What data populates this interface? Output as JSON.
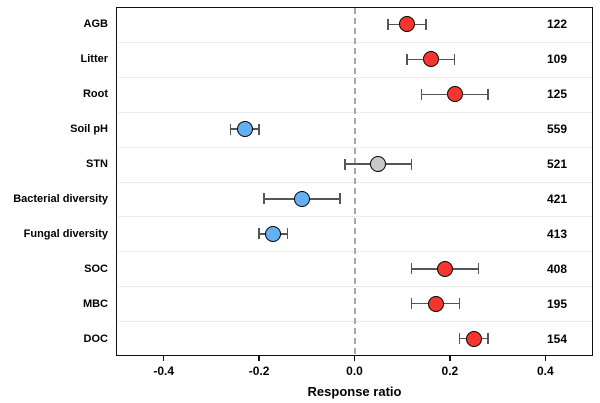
{
  "chart_data": {
    "type": "scatter",
    "subtype": "forest-plot-with-error-bars",
    "title": "",
    "xlabel": "Response ratio",
    "ylabel": "",
    "xlim": [
      -0.5,
      0.5
    ],
    "xticks": [
      {
        "value": -0.4,
        "label": "-0.4"
      },
      {
        "value": -0.2,
        "label": "-0.2"
      },
      {
        "value": 0.0,
        "label": "0.0"
      },
      {
        "value": 0.2,
        "label": "0.2"
      },
      {
        "value": 0.4,
        "label": "0.4"
      }
    ],
    "zero_reference_line": 0.0,
    "grid": "dotted horizontal separators between rows",
    "legend": "none",
    "rows": [
      {
        "label": "AGB",
        "mean": 0.11,
        "ci_low": 0.07,
        "ci_high": 0.15,
        "n": "122",
        "color_key": "red"
      },
      {
        "label": "Litter",
        "mean": 0.16,
        "ci_low": 0.11,
        "ci_high": 0.21,
        "n": "109",
        "color_key": "red"
      },
      {
        "label": "Root",
        "mean": 0.21,
        "ci_low": 0.14,
        "ci_high": 0.28,
        "n": "125",
        "color_key": "red"
      },
      {
        "label": "Soil pH",
        "mean": -0.23,
        "ci_low": -0.26,
        "ci_high": -0.2,
        "n": "559",
        "color_key": "blue"
      },
      {
        "label": "STN",
        "mean": 0.05,
        "ci_low": -0.02,
        "ci_high": 0.12,
        "n": "521",
        "color_key": "gray"
      },
      {
        "label": "Bacterial diversity",
        "mean": -0.11,
        "ci_low": -0.19,
        "ci_high": -0.03,
        "n": "421",
        "color_key": "blue"
      },
      {
        "label": "Fungal diversity",
        "mean": -0.17,
        "ci_low": -0.2,
        "ci_high": -0.14,
        "n": "413",
        "color_key": "blue"
      },
      {
        "label": "SOC",
        "mean": 0.19,
        "ci_low": 0.12,
        "ci_high": 0.26,
        "n": "408",
        "color_key": "red"
      },
      {
        "label": "MBC",
        "mean": 0.17,
        "ci_low": 0.12,
        "ci_high": 0.22,
        "n": "195",
        "color_key": "red"
      },
      {
        "label": "DOC",
        "mean": 0.25,
        "ci_low": 0.22,
        "ci_high": 0.28,
        "n": "154",
        "color_key": "red"
      }
    ],
    "palette": {
      "red": "#f5362e",
      "blue": "#63b0f3",
      "gray": "#c9c9c9"
    },
    "colors": {
      "error_bar": "#555555",
      "zero_line": "#a8a8a8",
      "grid_line": "#d9d9d9",
      "frame": "#111111",
      "text": "#000000",
      "background": "#ffffff"
    }
  }
}
